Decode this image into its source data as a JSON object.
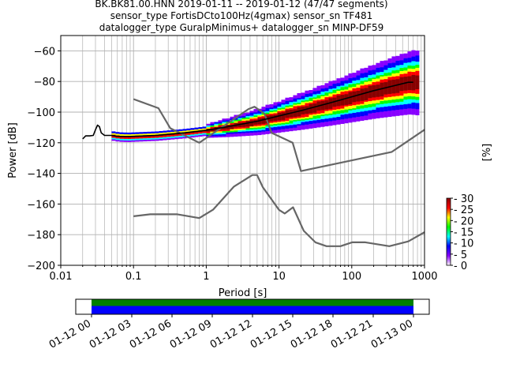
{
  "title_lines": [
    "BK.BK81.00.HNN   2019-01-11 -- 2019-01-12  (47/47 segments)",
    "sensor_type FortisDCto100Hz(4gmax) sensor_sn TF481",
    "datalogger_type GuralpMinimus+ datalogger_sn MINP-DF59"
  ],
  "chart_data": {
    "type": "line",
    "xlabel": "Period [s]",
    "ylabel": "Power [dB]",
    "xscale": "log",
    "xlim": [
      0.01,
      1000
    ],
    "ylim": [
      -200,
      -50
    ],
    "xticks": [
      {
        "value": 0.01,
        "label": "0.01"
      },
      {
        "value": 0.1,
        "label": "0.1"
      },
      {
        "value": 1,
        "label": "1"
      },
      {
        "value": 10,
        "label": "10"
      },
      {
        "value": 100,
        "label": "100"
      },
      {
        "value": 1000,
        "label": "1000"
      }
    ],
    "yticks": [
      -200,
      -180,
      -160,
      -140,
      -120,
      -100,
      -80,
      -60
    ],
    "grid": true,
    "series": [
      {
        "role": "noise-model-high",
        "color": "#666666",
        "x": [
          0.1,
          0.22,
          0.32,
          0.8,
          3.8,
          4.6,
          6.3,
          7.9,
          15.4,
          20,
          354.8,
          1000
        ],
        "y": [
          -91.5,
          -97.4,
          -110.5,
          -120,
          -98,
          -96.5,
          -101,
          -113.5,
          -120,
          -138.5,
          -126,
          -111.5
        ]
      },
      {
        "role": "noise-model-low",
        "color": "#666666",
        "x": [
          0.1,
          0.17,
          0.4,
          0.8,
          1.24,
          2.4,
          4.3,
          5,
          6,
          10,
          12,
          15.6,
          21.9,
          31.6,
          45,
          70,
          101,
          154,
          328,
          600,
          1000
        ],
        "y": [
          -168,
          -166.7,
          -166.7,
          -169.2,
          -163.7,
          -148.6,
          -141.1,
          -141.1,
          -149,
          -163.8,
          -166.2,
          -162.1,
          -177.5,
          -185,
          -187.5,
          -187.5,
          -185,
          -185,
          -187.5,
          -184.4,
          -178.4
        ]
      },
      {
        "role": "mean-psd",
        "color": "#000000",
        "x": [
          0.02,
          0.022,
          0.025,
          0.028,
          0.03,
          0.032,
          0.034,
          0.036,
          0.04,
          0.05,
          0.06,
          0.08,
          0.1,
          0.2,
          0.5,
          1,
          2,
          5,
          10,
          20,
          50,
          100,
          200,
          400,
          600,
          700
        ],
        "y": [
          -117.5,
          -115.5,
          -115.5,
          -115.2,
          -111.5,
          -108.5,
          -109.5,
          -113.5,
          -115.2,
          -115.2,
          -115.8,
          -116,
          -115.8,
          -115.2,
          -113.5,
          -111.8,
          -109.5,
          -106,
          -102.5,
          -99,
          -94,
          -90,
          -86,
          -82.5,
          -80.5,
          -80.5
        ]
      }
    ],
    "colorbar": {
      "label": "[%]",
      "ticks": [
        0,
        5,
        10,
        15,
        20,
        25,
        30
      ],
      "range": [
        0,
        30
      ],
      "colormap": [
        "#ffffff",
        "#8800ff",
        "#0000ff",
        "#00ffff",
        "#00ff00",
        "#ffff00",
        "#ff0000",
        "#880000"
      ]
    },
    "coverage": {
      "tick_labels": [
        "01-12 00",
        "01-12 03",
        "01-12 06",
        "01-12 09",
        "01-12 12",
        "01-12 15",
        "01-12 18",
        "01-12 21",
        "01-13 00"
      ],
      "colors": {
        "data": "#0000ff",
        "psd": "#008000"
      }
    }
  }
}
